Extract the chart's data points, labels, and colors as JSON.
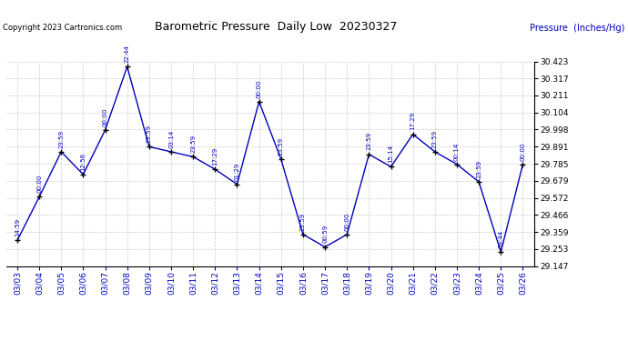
{
  "title": "Barometric Pressure  Daily Low  20230327",
  "ylabel": "Pressure  (Inches/Hg)",
  "copyright": "Copyright 2023 Cartronics.com",
  "dates": [
    "03/03",
    "03/04",
    "03/05",
    "03/06",
    "03/07",
    "03/08",
    "03/09",
    "03/10",
    "03/11",
    "03/12",
    "03/13",
    "03/14",
    "03/15",
    "03/16",
    "03/17",
    "03/18",
    "03/19",
    "03/20",
    "03/21",
    "03/22",
    "03/23",
    "03/24",
    "03/25",
    "03/26"
  ],
  "times": [
    "14:59",
    "00:00",
    "23:59",
    "12:56",
    "00:00",
    "22:44",
    "23:59",
    "03:14",
    "23:59",
    "17:29",
    "01:29",
    "00:00",
    "23:59",
    "23:59",
    "00:59",
    "00:00",
    "23:59",
    "15:14",
    "17:29",
    "23:59",
    "00:14",
    "23:59",
    "09:44",
    "00:00"
  ],
  "values": [
    29.3059,
    29.5781,
    29.8593,
    29.7178,
    29.9951,
    30.3896,
    29.8906,
    29.8593,
    29.8281,
    29.75,
    29.6562,
    30.1718,
    29.8125,
    29.3437,
    29.2656,
    29.3437,
    29.8437,
    29.7656,
    29.9687,
    29.8593,
    29.7812,
    29.6718,
    29.2343,
    29.7812
  ],
  "ylim_min": 29.147,
  "ylim_max": 30.423,
  "yticks": [
    29.147,
    29.253,
    29.359,
    29.466,
    29.572,
    29.679,
    29.785,
    29.891,
    29.998,
    30.104,
    30.211,
    30.317,
    30.423
  ],
  "line_color": "#0000bb",
  "marker_color": "#000000",
  "title_color": "#000000",
  "ylabel_color": "#0000bb",
  "copyright_color": "#000000",
  "bg_color": "#ffffff",
  "grid_color": "#cccccc",
  "time_label_color": "#0000bb"
}
